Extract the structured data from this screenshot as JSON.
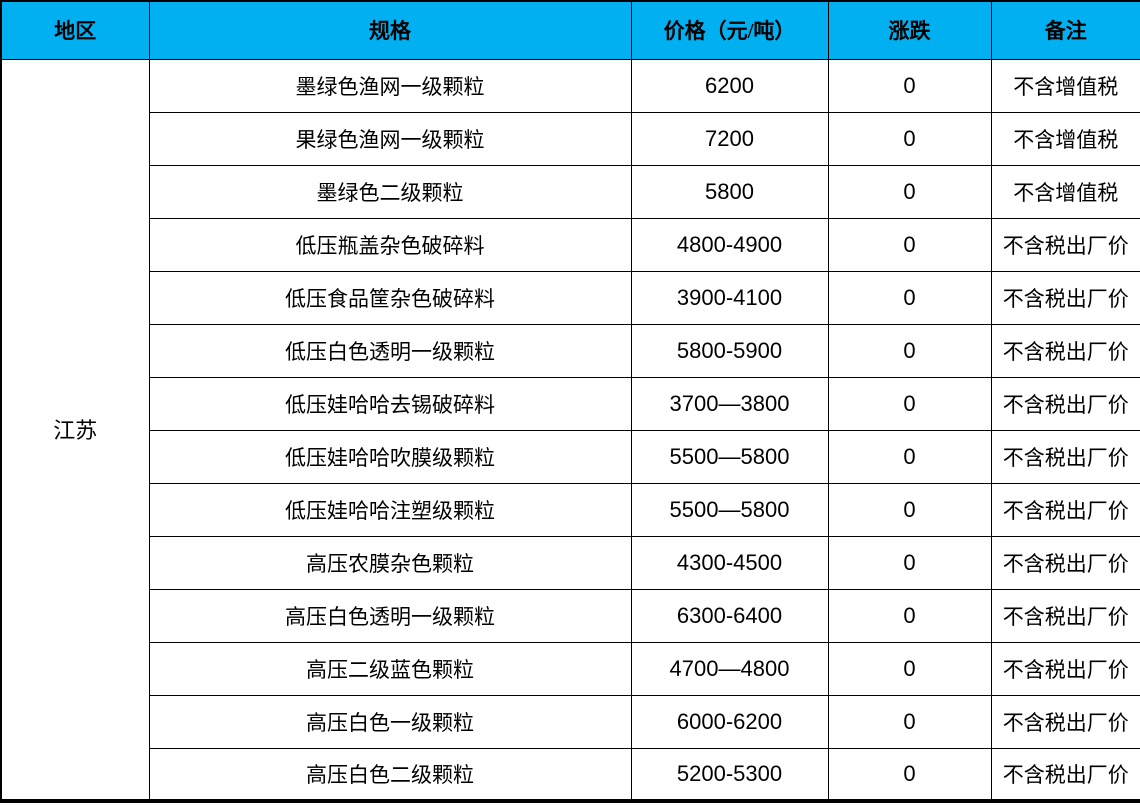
{
  "table": {
    "region": "江苏",
    "headers": {
      "region": "地区",
      "spec": "规格",
      "price": "价格（元/吨）",
      "change": "涨跌",
      "note": "备注"
    },
    "rows": [
      {
        "spec": "墨绿色渔网一级颗粒",
        "price": "6200",
        "change": "0",
        "note": "不含增值税"
      },
      {
        "spec": "果绿色渔网一级颗粒",
        "price": "7200",
        "change": "0",
        "note": "不含增值税"
      },
      {
        "spec": "墨绿色二级颗粒",
        "price": "5800",
        "change": "0",
        "note": "不含增值税"
      },
      {
        "spec": "低压瓶盖杂色破碎料",
        "price": "4800-4900",
        "change": "0",
        "note": "不含税出厂价"
      },
      {
        "spec": "低压食品筐杂色破碎料",
        "price": "3900-4100",
        "change": "0",
        "note": "不含税出厂价"
      },
      {
        "spec": "低压白色透明一级颗粒",
        "price": "5800-5900",
        "change": "0",
        "note": "不含税出厂价"
      },
      {
        "spec": "低压娃哈哈去锡破碎料",
        "price": "3700—3800",
        "change": "0",
        "note": "不含税出厂价"
      },
      {
        "spec": "低压娃哈哈吹膜级颗粒",
        "price": "5500—5800",
        "change": "0",
        "note": "不含税出厂价"
      },
      {
        "spec": "低压娃哈哈注塑级颗粒",
        "price": "5500—5800",
        "change": "0",
        "note": "不含税出厂价"
      },
      {
        "spec": "高压农膜杂色颗粒",
        "price": "4300-4500",
        "change": "0",
        "note": "不含税出厂价"
      },
      {
        "spec": "高压白色透明一级颗粒",
        "price": "6300-6400",
        "change": "0",
        "note": "不含税出厂价"
      },
      {
        "spec": "高压二级蓝色颗粒",
        "price": "4700—4800",
        "change": "0",
        "note": "不含税出厂价"
      },
      {
        "spec": "高压白色一级颗粒",
        "price": "6000-6200",
        "change": "0",
        "note": "不含税出厂价"
      },
      {
        "spec": "高压白色二级颗粒",
        "price": "5200-5300",
        "change": "0",
        "note": "不含税出厂价"
      }
    ],
    "colors": {
      "header_bg": "#00B0F0",
      "border": "#000000",
      "text": "#000000",
      "page_bg": "#FFFFFF"
    }
  }
}
